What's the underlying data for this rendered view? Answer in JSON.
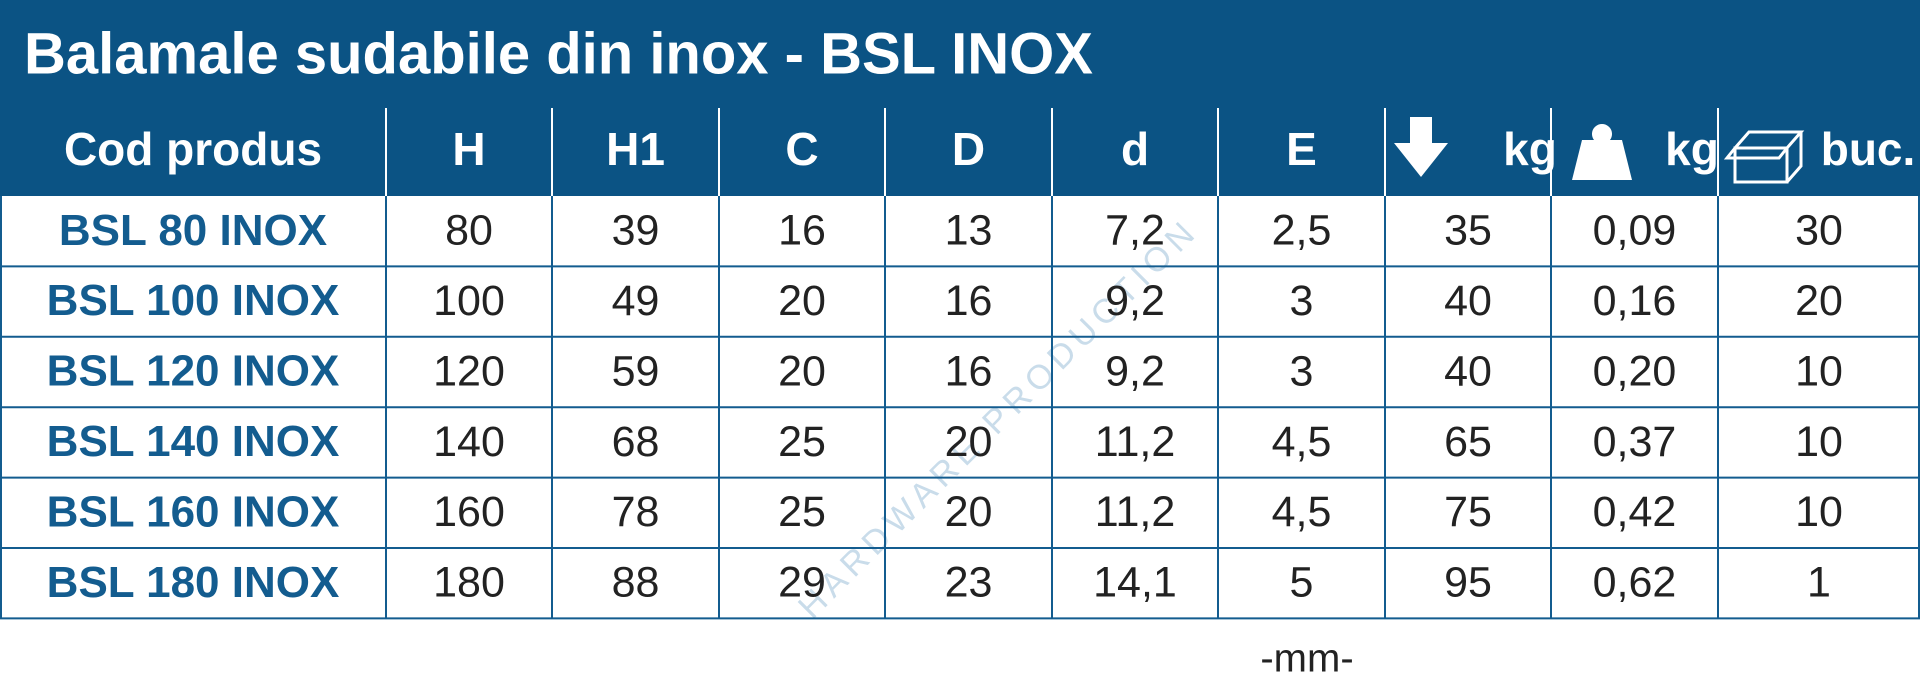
{
  "header": {
    "title": "Balamale sudabile din inox - BSL INOX"
  },
  "table": {
    "columns": [
      "Cod produs",
      "H",
      "H1",
      "C",
      "D",
      "d",
      "E",
      "kg",
      "kg",
      "buc."
    ],
    "rows": [
      [
        "BSL 80 INOX",
        "80",
        "39",
        "16",
        "13",
        "7,2",
        "2,5",
        "35",
        "0,09",
        "30"
      ],
      [
        "BSL 100 INOX",
        "100",
        "49",
        "20",
        "16",
        "9,2",
        "3",
        "40",
        "0,16",
        "20"
      ],
      [
        "BSL 120 INOX",
        "120",
        "59",
        "20",
        "16",
        "9,2",
        "3",
        "40",
        "0,20",
        "10"
      ],
      [
        "BSL 140 INOX",
        "140",
        "68",
        "25",
        "20",
        "11,2",
        "4,5",
        "65",
        "0,37",
        "10"
      ],
      [
        "BSL 160 INOX",
        "160",
        "78",
        "25",
        "20",
        "11,2",
        "4,5",
        "75",
        "0,42",
        "10"
      ],
      [
        "BSL 180 INOX",
        "180",
        "88",
        "29",
        "23",
        "14,1",
        "5",
        "95",
        "0,62",
        "1"
      ]
    ]
  },
  "footer": {
    "unit": "-mm-"
  },
  "watermark": "HARDWARE PRODUCTION"
}
